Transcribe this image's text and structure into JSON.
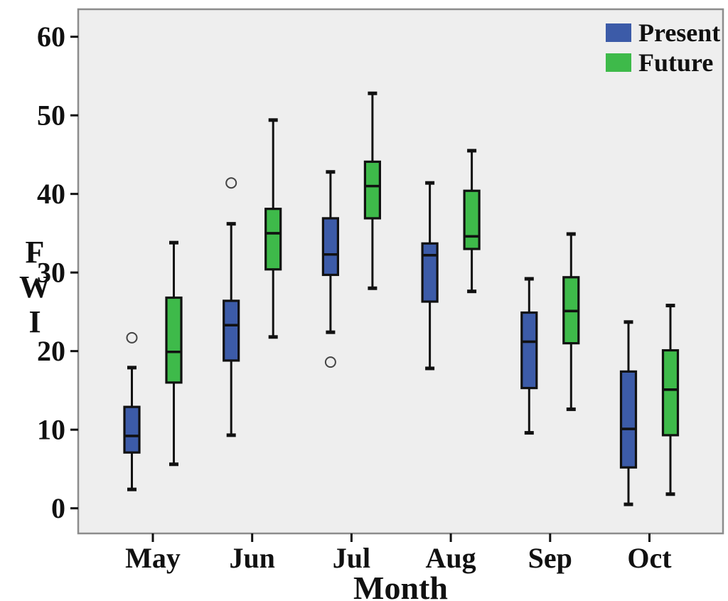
{
  "chart_data": {
    "type": "boxplot",
    "title": "",
    "xlabel": "Month",
    "ylabel": "FWI",
    "ylabel_display": [
      "F",
      "W",
      "I"
    ],
    "categories": [
      "May",
      "Jun",
      "Jul",
      "Aug",
      "Sep",
      "Oct"
    ],
    "y_ticks": [
      0,
      10,
      20,
      30,
      40,
      50,
      60
    ],
    "ylim": [
      -3.2,
      63.5
    ],
    "grid": "off",
    "legend": {
      "position": "top-right",
      "entries": [
        {
          "label": "Present",
          "color": "#3c5ba8"
        },
        {
          "label": "Future",
          "color": "#3eba4a"
        }
      ]
    },
    "series": [
      {
        "name": "Present",
        "color": "#3c5ba8",
        "boxes": [
          {
            "category": "May",
            "whisker_low": 2.4,
            "q1": 7.1,
            "median": 9.2,
            "q3": 12.9,
            "whisker_high": 17.9,
            "outliers": [
              21.7
            ]
          },
          {
            "category": "Jun",
            "whisker_low": 9.3,
            "q1": 18.8,
            "median": 23.3,
            "q3": 26.4,
            "whisker_high": 36.2,
            "outliers": [
              41.4
            ]
          },
          {
            "category": "Jul",
            "whisker_low": 22.4,
            "q1": 29.7,
            "median": 32.3,
            "q3": 36.9,
            "whisker_high": 42.8,
            "outliers": [
              18.6
            ]
          },
          {
            "category": "Aug",
            "whisker_low": 17.8,
            "q1": 26.3,
            "median": 32.2,
            "q3": 33.7,
            "whisker_high": 41.4,
            "outliers": []
          },
          {
            "category": "Sep",
            "whisker_low": 9.6,
            "q1": 15.3,
            "median": 21.2,
            "q3": 24.9,
            "whisker_high": 29.2,
            "outliers": []
          },
          {
            "category": "Oct",
            "whisker_low": 0.5,
            "q1": 5.2,
            "median": 10.1,
            "q3": 17.4,
            "whisker_high": 23.7,
            "outliers": []
          }
        ]
      },
      {
        "name": "Future",
        "color": "#3eba4a",
        "boxes": [
          {
            "category": "May",
            "whisker_low": 5.6,
            "q1": 16.0,
            "median": 19.9,
            "q3": 26.8,
            "whisker_high": 33.8,
            "outliers": []
          },
          {
            "category": "Jun",
            "whisker_low": 21.8,
            "q1": 30.4,
            "median": 35.0,
            "q3": 38.1,
            "whisker_high": 49.4,
            "outliers": []
          },
          {
            "category": "Jul",
            "whisker_low": 28.0,
            "q1": 36.9,
            "median": 41.0,
            "q3": 44.1,
            "whisker_high": 52.8,
            "outliers": []
          },
          {
            "category": "Aug",
            "whisker_low": 27.6,
            "q1": 33.0,
            "median": 34.6,
            "q3": 40.4,
            "whisker_high": 45.5,
            "outliers": []
          },
          {
            "category": "Sep",
            "whisker_low": 12.6,
            "q1": 21.0,
            "median": 25.1,
            "q3": 29.4,
            "whisker_high": 34.9,
            "outliers": []
          },
          {
            "category": "Oct",
            "whisker_low": 1.8,
            "q1": 9.3,
            "median": 15.1,
            "q3": 20.1,
            "whisker_high": 25.8,
            "outliers": []
          }
        ]
      }
    ]
  }
}
